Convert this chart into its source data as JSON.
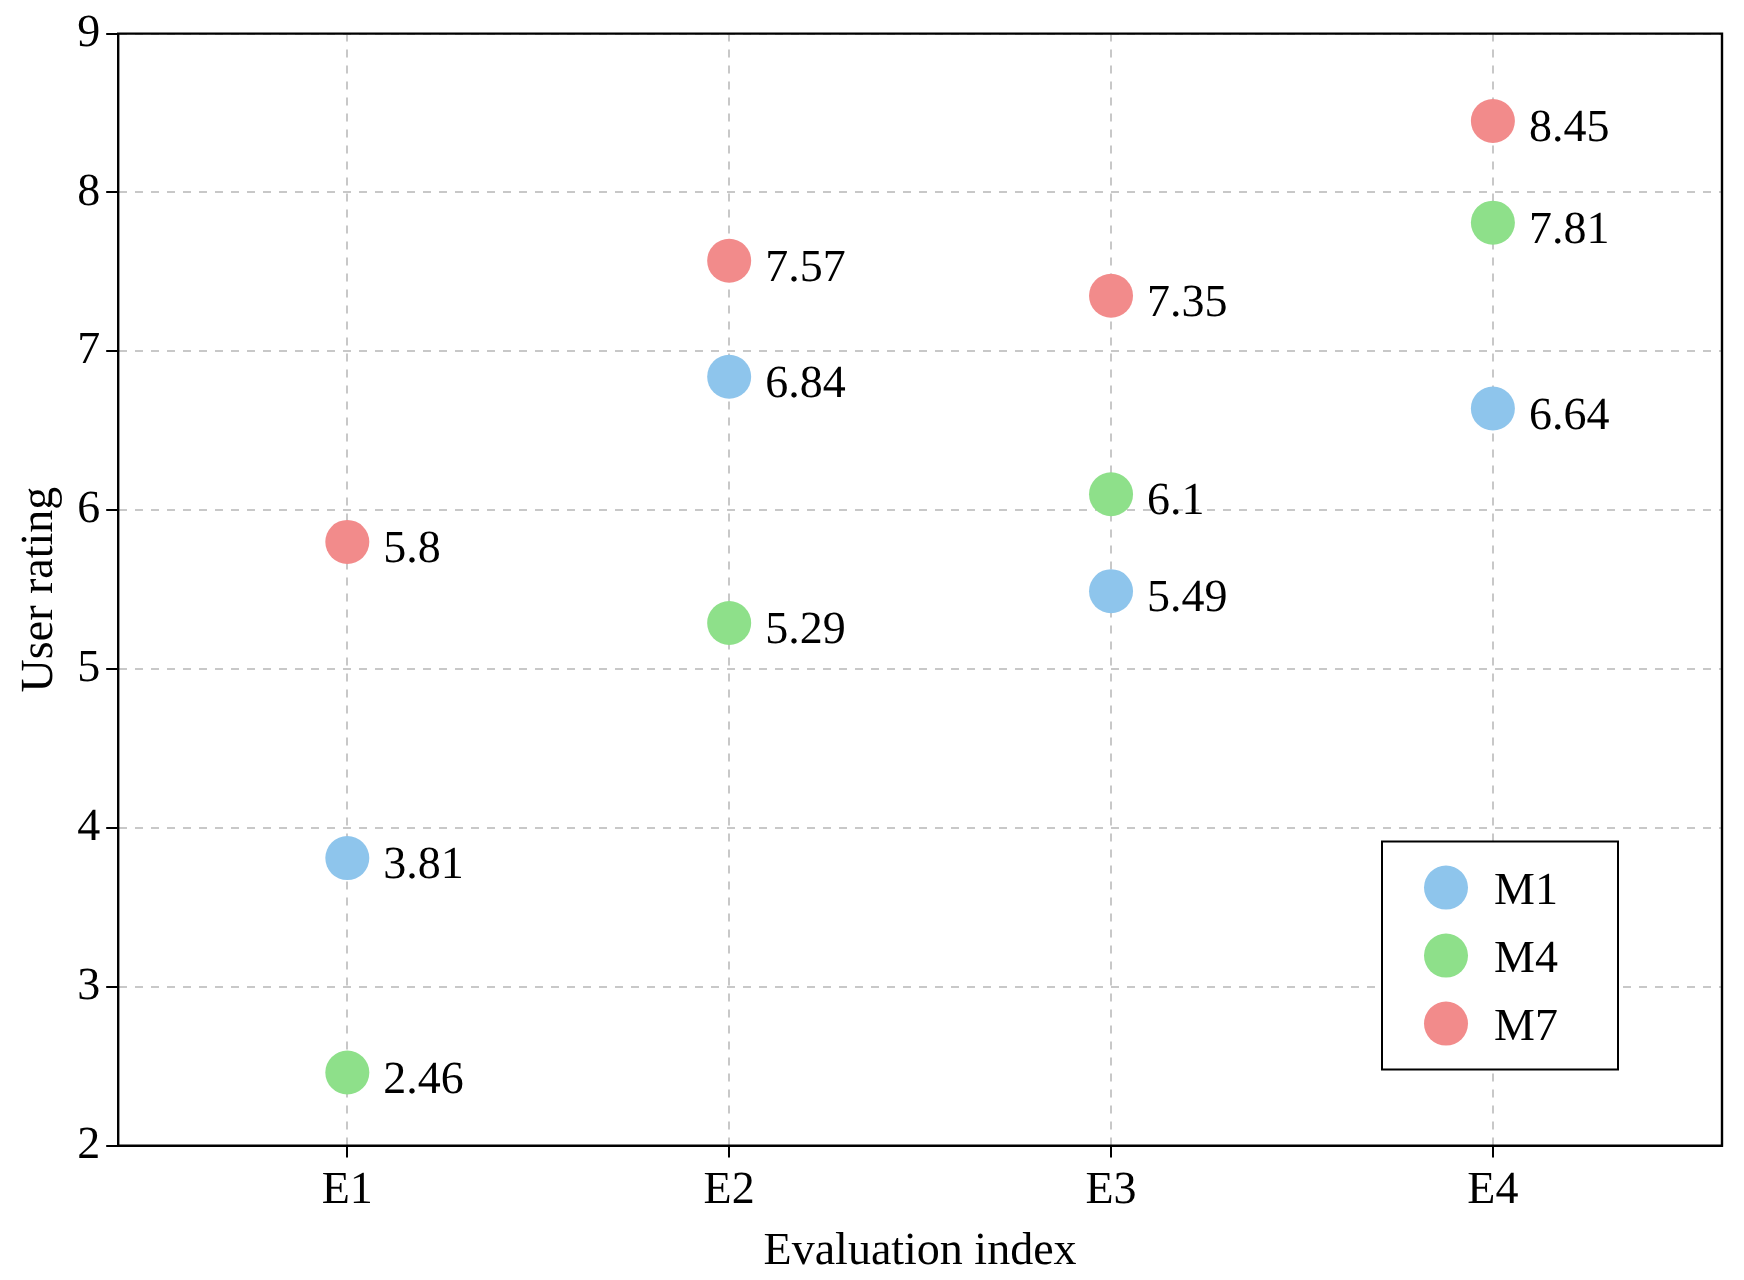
{
  "chart_data": {
    "type": "scatter",
    "xlabel": "Evaluation index",
    "ylabel": "User rating",
    "categories": [
      "E1",
      "E2",
      "E3",
      "E4"
    ],
    "series": [
      {
        "name": "M1",
        "color": "#8ec5ec",
        "values": [
          3.81,
          6.84,
          5.49,
          6.64
        ]
      },
      {
        "name": "M4",
        "color": "#8ee08a",
        "values": [
          2.46,
          5.29,
          6.1,
          7.81
        ]
      },
      {
        "name": "M7",
        "color": "#f28b8b",
        "values": [
          5.8,
          7.57,
          7.35,
          8.45
        ]
      }
    ],
    "ylim": [
      2,
      9
    ],
    "yticks": [
      2,
      3,
      4,
      5,
      6,
      7,
      8,
      9
    ],
    "grid": true,
    "legend": "bottom right",
    "marker": "circle",
    "data_labels": true
  }
}
